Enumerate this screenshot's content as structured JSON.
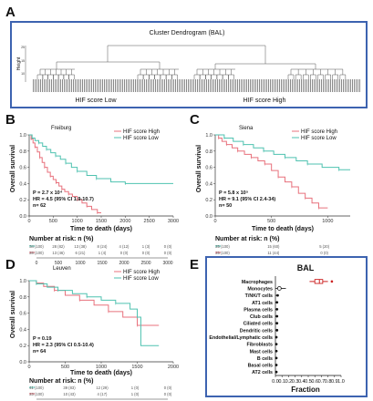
{
  "panels": {
    "A": {
      "letter": "A",
      "title": "Cluster Dendrogram (BAL)",
      "ylabel": "Height",
      "yticks": [
        "25",
        "15",
        "10"
      ],
      "group_low": "HIF score Low",
      "group_high": "HIF score High"
    },
    "B": {
      "letter": "B",
      "cohort": "Freiburg",
      "legend": [
        "HIF score High",
        "HIF score Low"
      ],
      "ylabel": "Overall survival",
      "xlabel": "Time to death (days)",
      "p_text": "P = 2.7 x 10⁴",
      "hr_text": "HR = 4.5 (95% CI 1.9-10.7)",
      "n_text": "n= 62",
      "risk_title": "Number at risk: n (%)",
      "risk_rows": [
        [
          "34 (100)",
          "28 (82)",
          "13 (38)",
          "8 (24)",
          "4 (12)",
          "1 (3)",
          "0 (0)"
        ],
        [
          "28 (100)",
          "13 (46)",
          "6 (21)",
          "1 (4)",
          "0 (0)",
          "0 (0)",
          "0 (0)"
        ]
      ]
    },
    "C": {
      "letter": "C",
      "cohort": "Siena",
      "legend": [
        "HIF score High",
        "HIF score Low"
      ],
      "ylabel": "Overall survival",
      "xlabel": "Time to death (days)",
      "p_text": "P = 5.8 x 10⁵",
      "hr_text": "HR = 9.1 (95% CI 2.4-34)",
      "n_text": "n= 50",
      "risk_title": "Number at risk: n (%)",
      "risk_rows": [
        [
          "25 (100)",
          "15 (60)",
          "5 (20)"
        ],
        [
          "25 (100)",
          "11 (44)",
          "0 (0)"
        ]
      ]
    },
    "D": {
      "letter": "D",
      "cohort": "Leuven",
      "legend": [
        "HIF score High",
        "HIF score Low"
      ],
      "ylabel": "Overall survival",
      "xlabel": "Time to death (days)",
      "p_text": "P = 0.19",
      "hr_text": "HR = 2.3 (95% CI 0.5-10.4)",
      "n_text": "n= 64",
      "risk_title": "Number at risk: n (%)",
      "risk_rows": [
        [
          "41 (100)",
          "39 (83)",
          "12 (29)",
          "1 (0)",
          "0 (0)"
        ],
        [
          "23 (100)",
          "10 (43)",
          "4 (17)",
          "1 (0)",
          "0 (0)"
        ]
      ]
    },
    "E": {
      "letter": "E",
      "title": "BAL",
      "xlabel": "Fraction",
      "cell_types": [
        "Macrophages",
        "Monocytes",
        "T/NK/T cells",
        "AT1 cells",
        "Plasma cells",
        "Club cells",
        "Ciliated cells",
        "Dendritic cells",
        "Endothelial/Lymphatic cells",
        "Fibroblasts",
        "Mast cells",
        "B cells",
        "Basal cells",
        "AT2 cells"
      ]
    }
  },
  "colors": {
    "high": "#e8717c",
    "low": "#4fc2b0",
    "frame_blue": "#3d63b0",
    "frame_red": "#cc2222"
  },
  "chart_data": [
    {
      "type": "line",
      "panel": "B",
      "xlabel": "Time to death (days)",
      "ylabel": "Overall survival",
      "xlim": [
        0,
        3000
      ],
      "ylim": [
        0,
        1
      ],
      "xticks": [
        0,
        500,
        1000,
        1500,
        2000,
        2500,
        3000
      ],
      "yticks": [
        0.0,
        0.2,
        0.4,
        0.6,
        0.8,
        1.0
      ],
      "series": [
        {
          "name": "HIF score High",
          "x": [
            0,
            40,
            80,
            120,
            170,
            220,
            270,
            320,
            380,
            440,
            500,
            560,
            620,
            680,
            740,
            820,
            900,
            1000,
            1100,
            1200,
            1300,
            1420,
            1500
          ],
          "y": [
            1.0,
            0.95,
            0.9,
            0.85,
            0.79,
            0.72,
            0.66,
            0.6,
            0.54,
            0.49,
            0.45,
            0.41,
            0.37,
            0.33,
            0.3,
            0.27,
            0.24,
            0.2,
            0.16,
            0.12,
            0.08,
            0.04,
            0.04
          ]
        },
        {
          "name": "HIF score Low",
          "x": [
            0,
            60,
            120,
            200,
            280,
            360,
            450,
            550,
            650,
            760,
            880,
            1000,
            1200,
            1400,
            1700,
            2000,
            2300,
            3000
          ],
          "y": [
            1.0,
            0.96,
            0.93,
            0.9,
            0.86,
            0.82,
            0.78,
            0.74,
            0.7,
            0.65,
            0.6,
            0.55,
            0.5,
            0.46,
            0.42,
            0.4,
            0.4,
            0.4
          ]
        }
      ]
    },
    {
      "type": "line",
      "panel": "C",
      "xlabel": "Time to death (days)",
      "ylabel": "Overall survival",
      "xlim": [
        0,
        1200
      ],
      "ylim": [
        0,
        1
      ],
      "xticks": [
        0,
        500,
        1000
      ],
      "yticks": [
        0.0,
        0.2,
        0.4,
        0.6,
        0.8,
        1.0
      ],
      "series": [
        {
          "name": "HIF score High",
          "x": [
            0,
            30,
            60,
            100,
            150,
            200,
            260,
            320,
            380,
            440,
            500,
            560,
            620,
            680,
            740,
            800,
            860,
            920,
            1000
          ],
          "y": [
            1.0,
            0.96,
            0.92,
            0.88,
            0.84,
            0.8,
            0.76,
            0.72,
            0.68,
            0.64,
            0.56,
            0.48,
            0.42,
            0.36,
            0.28,
            0.22,
            0.16,
            0.1,
            0.1
          ]
        },
        {
          "name": "HIF score Low",
          "x": [
            0,
            80,
            160,
            250,
            340,
            430,
            520,
            620,
            720,
            820,
            950,
            1100,
            1200
          ],
          "y": [
            1.0,
            0.96,
            0.92,
            0.88,
            0.84,
            0.8,
            0.76,
            0.72,
            0.68,
            0.64,
            0.6,
            0.57,
            0.57
          ]
        }
      ]
    },
    {
      "type": "line",
      "panel": "D",
      "xlabel": "Time to death (days)",
      "ylabel": "Overall survival",
      "xlim": [
        0,
        2000
      ],
      "ylim": [
        0,
        1
      ],
      "xticks": [
        0,
        500,
        1000,
        1500,
        2000
      ],
      "yticks": [
        0.0,
        0.2,
        0.4,
        0.6,
        0.8,
        1.0
      ],
      "series": [
        {
          "name": "HIF score High",
          "x": [
            0,
            100,
            200,
            350,
            500,
            700,
            900,
            1100,
            1300,
            1500,
            1800
          ],
          "y": [
            1.0,
            0.97,
            0.93,
            0.88,
            0.82,
            0.76,
            0.7,
            0.62,
            0.55,
            0.45,
            0.45
          ]
        },
        {
          "name": "HIF score Low",
          "x": [
            0,
            100,
            250,
            400,
            600,
            800,
            1000,
            1200,
            1400,
            1500,
            1550,
            1800
          ],
          "y": [
            1.0,
            0.96,
            0.92,
            0.88,
            0.84,
            0.8,
            0.76,
            0.72,
            0.65,
            0.55,
            0.2,
            0.2
          ]
        }
      ]
    },
    {
      "type": "scatter",
      "panel": "E",
      "title": "BAL",
      "xlabel": "Fraction",
      "xlim": [
        0,
        1
      ],
      "xticks": [
        0.0,
        0.1,
        0.2,
        0.3,
        0.4,
        0.5,
        0.6,
        0.7,
        0.8,
        0.9,
        1.0
      ],
      "categories": [
        "Macrophages",
        "Monocytes",
        "T/NK/T cells",
        "AT1 cells",
        "Plasma cells",
        "Club cells",
        "Ciliated cells",
        "Dendritic cells",
        "Endothelial/Lymphatic cells",
        "Fibroblasts",
        "Mast cells",
        "B cells",
        "Basal cells",
        "AT2 cells"
      ],
      "values": [
        0.67,
        0.06,
        0.02,
        0.01,
        0.01,
        0.01,
        0.01,
        0.01,
        0.0,
        0.0,
        0.0,
        0.0,
        0.0,
        0.0
      ]
    }
  ]
}
